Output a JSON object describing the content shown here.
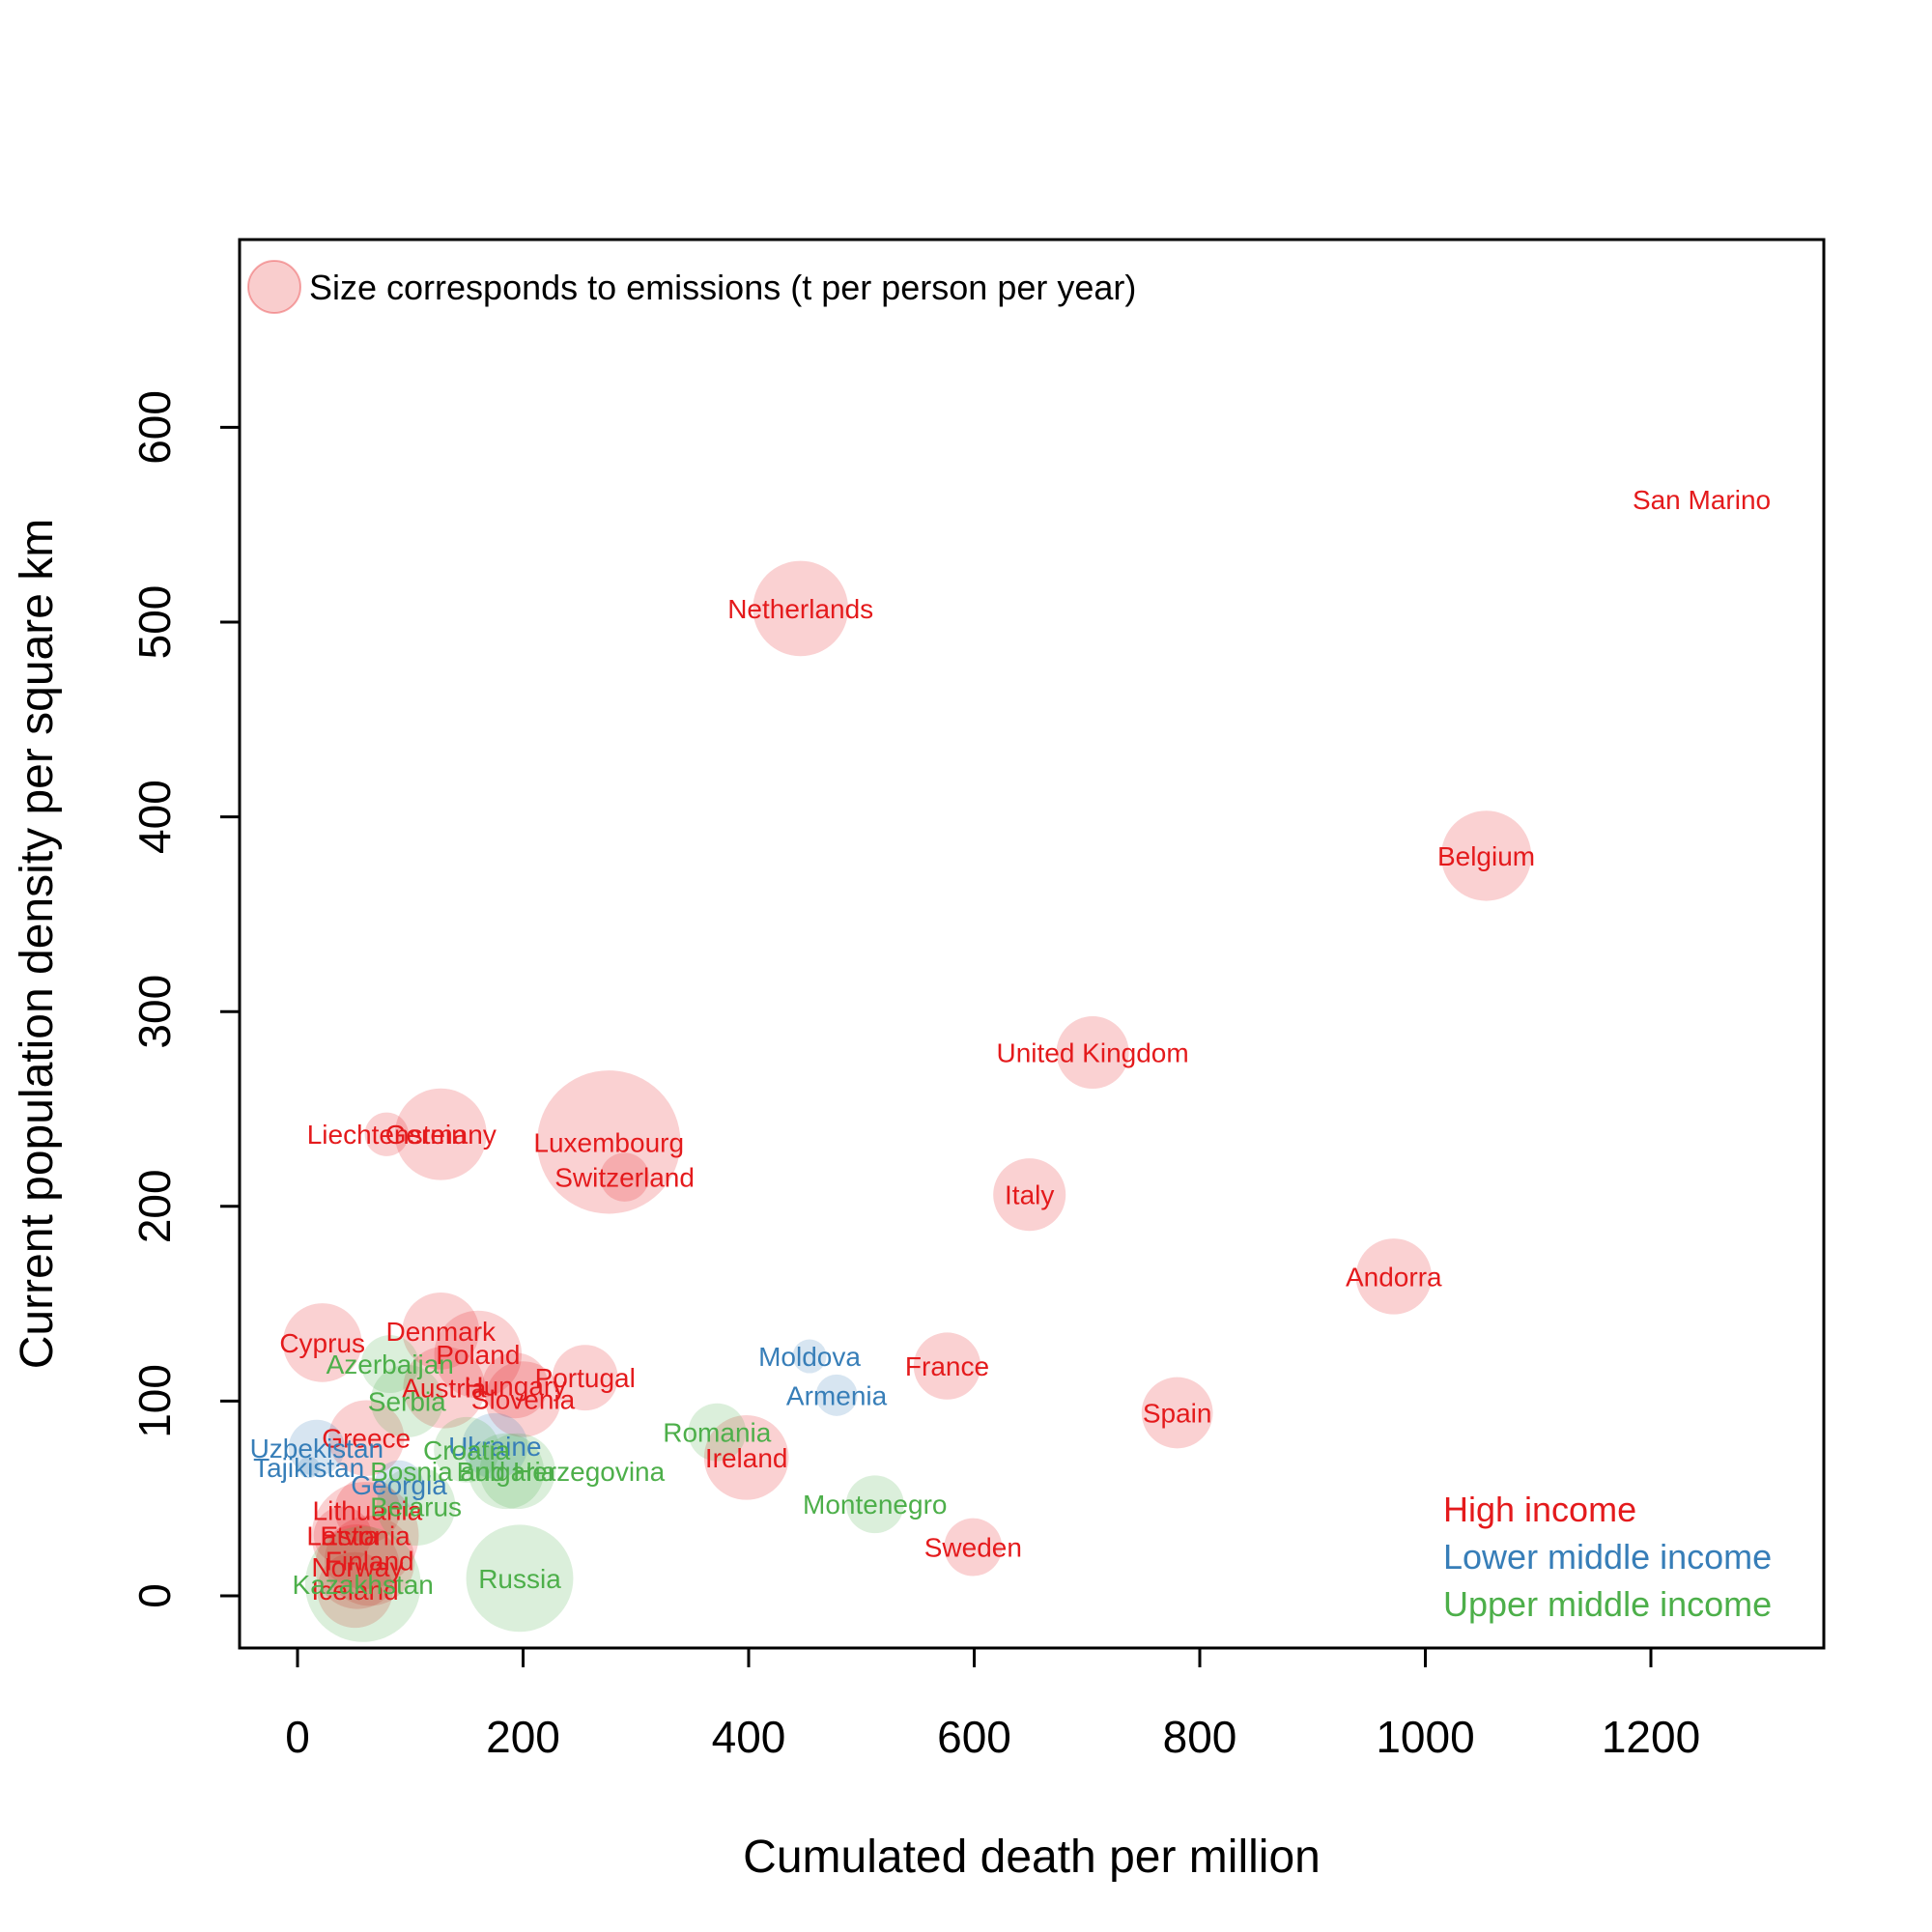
{
  "chart_data": {
    "type": "scatter",
    "xlabel": "Cumulated death per million",
    "ylabel": "Current population density per square km",
    "xlim": [
      -50,
      1350
    ],
    "ylim": [
      -25,
      700
    ],
    "xticks": [
      0,
      200,
      400,
      600,
      800,
      1000,
      1200
    ],
    "yticks": [
      0,
      100,
      200,
      300,
      400,
      500,
      600
    ],
    "size_note": "Size corresponds to emissions (t per person per year)",
    "colors": {
      "High income": "#e41a1c",
      "Lower middle income": "#377eb8",
      "Upper middle income": "#4daf4a"
    },
    "legend": [
      "High income",
      "Lower middle income",
      "Upper middle income"
    ],
    "points": [
      {
        "label": "San Marino",
        "x": 1245,
        "y": 563,
        "size": 0,
        "group": "High income"
      },
      {
        "label": "Netherlands",
        "x": 446,
        "y": 507,
        "size": 9.5,
        "group": "High income"
      },
      {
        "label": "Belgium",
        "x": 1054,
        "y": 380,
        "size": 8.5,
        "group": "High income"
      },
      {
        "label": "United Kingdom",
        "x": 705,
        "y": 279,
        "size": 5.5,
        "group": "High income"
      },
      {
        "label": "Luxembourg",
        "x": 276,
        "y": 233,
        "size": 21.5,
        "group": "High income"
      },
      {
        "label": "Germany",
        "x": 127,
        "y": 237,
        "size": 8.8,
        "group": "High income"
      },
      {
        "label": "Liechtenstein",
        "x": 79,
        "y": 237,
        "size": 2.0,
        "group": "High income"
      },
      {
        "label": "Switzerland",
        "x": 290,
        "y": 215,
        "size": 2.5,
        "group": "High income"
      },
      {
        "label": "Italy",
        "x": 649,
        "y": 206,
        "size": 5.5,
        "group": "High income"
      },
      {
        "label": "Andorra",
        "x": 972,
        "y": 164,
        "size": 6.0,
        "group": "High income"
      },
      {
        "label": "Cyprus",
        "x": 22,
        "y": 130,
        "size": 6.5,
        "group": "High income"
      },
      {
        "label": "Denmark",
        "x": 127,
        "y": 136,
        "size": 6.2,
        "group": "High income"
      },
      {
        "label": "Poland",
        "x": 160,
        "y": 124,
        "size": 8.0,
        "group": "High income"
      },
      {
        "label": "France",
        "x": 576,
        "y": 118,
        "size": 4.7,
        "group": "High income"
      },
      {
        "label": "Portugal",
        "x": 255,
        "y": 112,
        "size": 4.5,
        "group": "High income"
      },
      {
        "label": "Austria",
        "x": 130,
        "y": 107,
        "size": 7.0,
        "group": "High income"
      },
      {
        "label": "Hungary",
        "x": 193,
        "y": 108,
        "size": 4.5,
        "group": "High income"
      },
      {
        "label": "Slovenia",
        "x": 200,
        "y": 101,
        "size": 6.0,
        "group": "High income"
      },
      {
        "label": "Spain",
        "x": 780,
        "y": 94,
        "size": 5.3,
        "group": "High income"
      },
      {
        "label": "Greece",
        "x": 61,
        "y": 81,
        "size": 6.0,
        "group": "High income"
      },
      {
        "label": "Ireland",
        "x": 398,
        "y": 71,
        "size": 7.5,
        "group": "High income"
      },
      {
        "label": "Sweden",
        "x": 599,
        "y": 25,
        "size": 3.5,
        "group": "High income"
      },
      {
        "label": "Lithuania",
        "x": 62,
        "y": 44,
        "size": 4.5,
        "group": "High income"
      },
      {
        "label": "Estonia",
        "x": 60,
        "y": 31,
        "size": 12.0,
        "group": "High income"
      },
      {
        "label": "Latvia",
        "x": 40,
        "y": 31,
        "size": 3.5,
        "group": "High income"
      },
      {
        "label": "Finland",
        "x": 64,
        "y": 18,
        "size": 8.5,
        "group": "High income"
      },
      {
        "label": "Norway",
        "x": 53,
        "y": 15,
        "size": 7.5,
        "group": "High income"
      },
      {
        "label": "Iceland",
        "x": 51,
        "y": 3,
        "size": 6.0,
        "group": "High income"
      },
      {
        "label": "Moldova",
        "x": 454,
        "y": 123,
        "size": 1.2,
        "group": "Lower middle income"
      },
      {
        "label": "Armenia",
        "x": 478,
        "y": 103,
        "size": 1.8,
        "group": "Lower middle income"
      },
      {
        "label": "Uzbekistan",
        "x": 17,
        "y": 76,
        "size": 3.3,
        "group": "Lower middle income"
      },
      {
        "label": "Tajikistan",
        "x": 10,
        "y": 66,
        "size": 0.5,
        "group": "Lower middle income"
      },
      {
        "label": "Ukraine",
        "x": 175,
        "y": 77,
        "size": 4.5,
        "group": "Lower middle income"
      },
      {
        "label": "Georgia",
        "x": 90,
        "y": 57,
        "size": 2.5,
        "group": "Lower middle income"
      },
      {
        "label": "Azerbaijan",
        "x": 82,
        "y": 119,
        "size": 3.5,
        "group": "Upper middle income"
      },
      {
        "label": "Serbia",
        "x": 97,
        "y": 100,
        "size": 5.5,
        "group": "Upper middle income"
      },
      {
        "label": "Croatia",
        "x": 150,
        "y": 75,
        "size": 4.5,
        "group": "Upper middle income"
      },
      {
        "label": "Bulgaria",
        "x": 185,
        "y": 64,
        "size": 6.0,
        "group": "Upper middle income"
      },
      {
        "label": "Bosnia and Herzegovina",
        "x": 195,
        "y": 64,
        "size": 6.0,
        "group": "Upper middle income"
      },
      {
        "label": "Romania",
        "x": 372,
        "y": 84,
        "size": 3.5,
        "group": "Upper middle income"
      },
      {
        "label": "Montenegro",
        "x": 512,
        "y": 47,
        "size": 3.5,
        "group": "Upper middle income"
      },
      {
        "label": "Belarus",
        "x": 105,
        "y": 46,
        "size": 6.5,
        "group": "Upper middle income"
      },
      {
        "label": "Kazakhstan",
        "x": 58,
        "y": 6,
        "size": 14.0,
        "group": "Upper middle income"
      },
      {
        "label": "Russia",
        "x": 197,
        "y": 9,
        "size": 12.0,
        "group": "Upper middle income"
      }
    ]
  }
}
